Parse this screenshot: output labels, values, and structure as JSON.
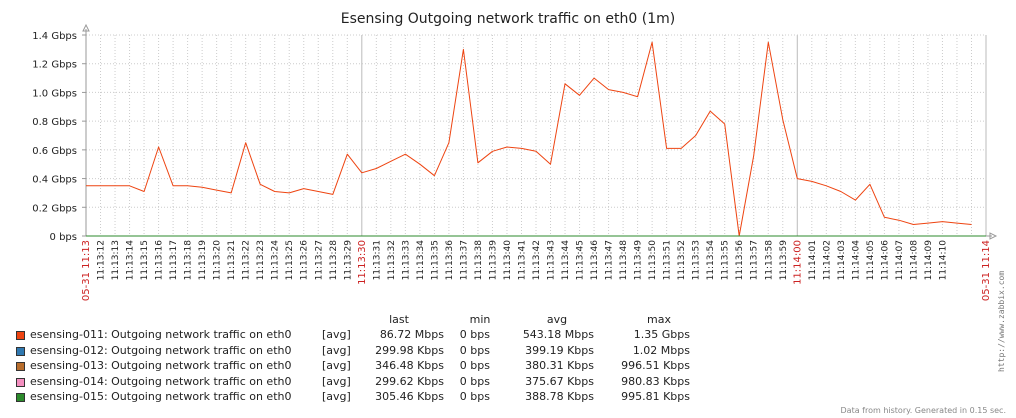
{
  "chart_data": {
    "type": "line",
    "title": "Esensing Outgoing network traffic on eth0 (1m)",
    "y_unit": "Gbps",
    "ylim": [
      0,
      1.4
    ],
    "y_ticks": [
      "0 bps",
      "0.2 Gbps",
      "0.4 Gbps",
      "0.6 Gbps",
      "0.8 Gbps",
      "1.0 Gbps",
      "1.2 Gbps",
      "1.4 Gbps"
    ],
    "x_major_labels": {
      "start": "05-31 11:13",
      "mid1": "11:13:30",
      "mid2": "11:14:00",
      "end": "05-31 11:14"
    },
    "x_ticks": [
      "11:13:12",
      "11:13:13",
      "11:13:14",
      "11:13:15",
      "11:13:16",
      "11:13:17",
      "11:13:18",
      "11:13:19",
      "11:13:20",
      "11:13:21",
      "11:13:22",
      "11:13:23",
      "11:13:24",
      "11:13:25",
      "11:13:26",
      "11:13:27",
      "11:13:28",
      "11:13:29",
      "11:13:31",
      "11:13:32",
      "11:13:33",
      "11:13:34",
      "11:13:35",
      "11:13:36",
      "11:13:37",
      "11:13:38",
      "11:13:39",
      "11:13:40",
      "11:13:41",
      "11:13:42",
      "11:13:43",
      "11:13:44",
      "11:13:45",
      "11:13:46",
      "11:13:47",
      "11:13:48",
      "11:13:49",
      "11:13:50",
      "11:13:51",
      "11:13:52",
      "11:13:53",
      "11:13:54",
      "11:13:55",
      "11:13:56",
      "11:13:57",
      "11:13:58",
      "11:13:59",
      "11:14:01",
      "11:14:02",
      "11:14:03",
      "11:14:04",
      "11:14:05",
      "11:14:06",
      "11:14:07",
      "11:14:08",
      "11:14:09",
      "11:14:10"
    ],
    "grid": true,
    "series": [
      {
        "name": "esensing-011: Outgoing network traffic on eth0",
        "color": "#ee4411",
        "points": [
          [
            0,
            0.35
          ],
          [
            2,
            0.35
          ],
          [
            3,
            0.35
          ],
          [
            4,
            0.31
          ],
          [
            5,
            0.62
          ],
          [
            6,
            0.35
          ],
          [
            7,
            0.35
          ],
          [
            8,
            0.34
          ],
          [
            9,
            0.32
          ],
          [
            10,
            0.3
          ],
          [
            11,
            0.65
          ],
          [
            12,
            0.36
          ],
          [
            13,
            0.31
          ],
          [
            14,
            0.3
          ],
          [
            15,
            0.33
          ],
          [
            16,
            0.31
          ],
          [
            17,
            0.29
          ],
          [
            18,
            0.57
          ],
          [
            19,
            0.44
          ],
          [
            20,
            0.47
          ],
          [
            21,
            0.52
          ],
          [
            22,
            0.57
          ],
          [
            23,
            0.5
          ],
          [
            24,
            0.42
          ],
          [
            25,
            0.65
          ],
          [
            26,
            1.3
          ],
          [
            27,
            0.51
          ],
          [
            28,
            0.59
          ],
          [
            29,
            0.62
          ],
          [
            30,
            0.61
          ],
          [
            31,
            0.59
          ],
          [
            32,
            0.5
          ],
          [
            33,
            1.06
          ],
          [
            34,
            0.98
          ],
          [
            35,
            1.1
          ],
          [
            36,
            1.02
          ],
          [
            37,
            1.0
          ],
          [
            38,
            0.97
          ],
          [
            39,
            1.35
          ],
          [
            40,
            0.61
          ],
          [
            41,
            0.61
          ],
          [
            42,
            0.7
          ],
          [
            43,
            0.87
          ],
          [
            44,
            0.78
          ],
          [
            45,
            0.0
          ],
          [
            46,
            0.56
          ],
          [
            47,
            1.35
          ],
          [
            48,
            0.81
          ],
          [
            49,
            0.4
          ],
          [
            50,
            0.38
          ],
          [
            51,
            0.35
          ],
          [
            52,
            0.31
          ],
          [
            53,
            0.25
          ],
          [
            54,
            0.36
          ],
          [
            55,
            0.13
          ],
          [
            56,
            0.11
          ],
          [
            57,
            0.08
          ],
          [
            58,
            0.09
          ],
          [
            59,
            0.1
          ],
          [
            60,
            0.09
          ],
          [
            61,
            0.08
          ]
        ]
      },
      {
        "name": "esensing-012: Outgoing network traffic on eth0",
        "color": "#2f78b0",
        "constant": 0.0003
      },
      {
        "name": "esensing-013: Outgoing network traffic on eth0",
        "color": "#b86d2c",
        "constant": 0.0004
      },
      {
        "name": "esensing-014: Outgoing network traffic on eth0",
        "color": "#f48fc0",
        "constant": 0.0003
      },
      {
        "name": "esensing-015: Outgoing network traffic on eth0",
        "color": "#2b8a2b",
        "constant": 0.0003
      }
    ]
  },
  "legend": {
    "headers": {
      "last": "last",
      "min": "min",
      "avg": "avg",
      "max": "max"
    },
    "rows": [
      {
        "name": "esensing-011: Outgoing network traffic on eth0",
        "func": "[avg]",
        "last": "86.72 Mbps",
        "min": "0 bps",
        "avg": "543.18 Mbps",
        "max": "1.35 Gbps",
        "color": "#ee4411"
      },
      {
        "name": "esensing-012: Outgoing network traffic on eth0",
        "func": "[avg]",
        "last": "299.98 Kbps",
        "min": "0 bps",
        "avg": "399.19 Kbps",
        "max": "1.02 Mbps",
        "color": "#2f78b0"
      },
      {
        "name": "esensing-013: Outgoing network traffic on eth0",
        "func": "[avg]",
        "last": "346.48 Kbps",
        "min": "0 bps",
        "avg": "380.31 Kbps",
        "max": "996.51 Kbps",
        "color": "#b86d2c"
      },
      {
        "name": "esensing-014: Outgoing network traffic on eth0",
        "func": "[avg]",
        "last": "299.62 Kbps",
        "min": "0 bps",
        "avg": "375.67 Kbps",
        "max": "980.83 Kbps",
        "color": "#f48fc0"
      },
      {
        "name": "esensing-015: Outgoing network traffic on eth0",
        "func": "[avg]",
        "last": "305.46 Kbps",
        "min": "0 bps",
        "avg": "388.78 Kbps",
        "max": "995.81 Kbps",
        "color": "#2b8a2b"
      }
    ]
  },
  "watermark": "http://www.zabbix.com",
  "footer": "Data from history. Generated in 0.15 sec."
}
